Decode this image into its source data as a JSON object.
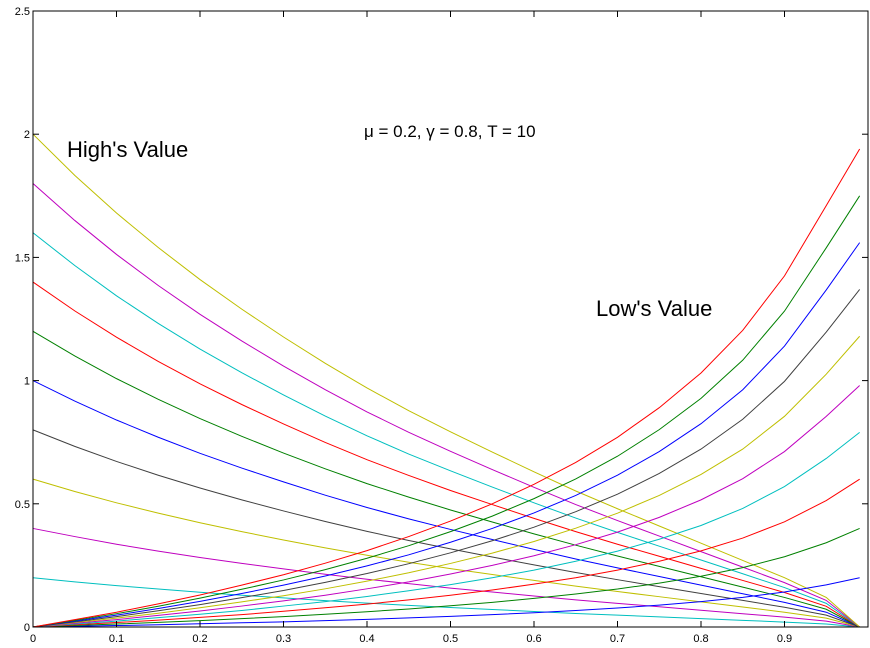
{
  "chart_data": {
    "type": "line",
    "title": "",
    "xlabel": "",
    "ylabel": "",
    "xlim": [
      0,
      1
    ],
    "ylim": [
      0,
      2.5
    ],
    "x_ticks": [
      0,
      0.1,
      0.2,
      0.3,
      0.4,
      0.5,
      0.6,
      0.7,
      0.8,
      0.9
    ],
    "x_tick_labels": [
      "0",
      "0.1",
      "0.2",
      "0.3",
      "0.4",
      "0.5",
      "0.6",
      "0.7",
      "0.8",
      "0.9"
    ],
    "y_ticks": [
      0,
      0.5,
      1,
      1.5,
      2,
      2.5
    ],
    "y_tick_labels": [
      "0",
      "0.5",
      "1",
      "1.5",
      "2",
      "2.5"
    ],
    "grid": false,
    "annotations": {
      "high": "High's Value",
      "low": "Low's Value",
      "params": "μ = 0.2, γ = 0.8, T = 10"
    },
    "x": [
      0,
      0.05,
      0.1,
      0.15,
      0.2,
      0.25,
      0.3,
      0.35,
      0.4,
      0.45,
      0.5,
      0.55,
      0.6,
      0.65,
      0.7,
      0.75,
      0.8,
      0.85,
      0.9,
      0.95,
      0.99
    ],
    "series": [
      {
        "group": "high",
        "color": "#00bfbf",
        "values": [
          0.2,
          0.183,
          0.168,
          0.154,
          0.141,
          0.129,
          0.118,
          0.107,
          0.097,
          0.088,
          0.079,
          0.071,
          0.063,
          0.055,
          0.048,
          0.041,
          0.034,
          0.027,
          0.02,
          0.012,
          0.0
        ]
      },
      {
        "group": "high",
        "color": "#bf00bf",
        "values": [
          0.4,
          0.367,
          0.336,
          0.308,
          0.282,
          0.258,
          0.236,
          0.214,
          0.194,
          0.176,
          0.158,
          0.142,
          0.126,
          0.11,
          0.096,
          0.082,
          0.068,
          0.054,
          0.04,
          0.024,
          0.0
        ]
      },
      {
        "group": "high",
        "color": "#bfbf00",
        "values": [
          0.6,
          0.55,
          0.504,
          0.462,
          0.423,
          0.387,
          0.353,
          0.321,
          0.291,
          0.263,
          0.237,
          0.213,
          0.189,
          0.166,
          0.144,
          0.123,
          0.102,
          0.081,
          0.06,
          0.036,
          0.0
        ]
      },
      {
        "group": "high",
        "color": "#404040",
        "values": [
          0.8,
          0.733,
          0.672,
          0.616,
          0.564,
          0.516,
          0.471,
          0.428,
          0.388,
          0.351,
          0.317,
          0.284,
          0.252,
          0.221,
          0.192,
          0.164,
          0.136,
          0.108,
          0.08,
          0.048,
          0.0
        ]
      },
      {
        "group": "high",
        "color": "#0000ff",
        "values": [
          1.0,
          0.917,
          0.84,
          0.77,
          0.705,
          0.645,
          0.589,
          0.535,
          0.485,
          0.439,
          0.396,
          0.355,
          0.315,
          0.276,
          0.24,
          0.205,
          0.17,
          0.135,
          0.1,
          0.06,
          0.0
        ]
      },
      {
        "group": "high",
        "color": "#008000",
        "values": [
          1.2,
          1.1,
          1.008,
          0.924,
          0.846,
          0.774,
          0.706,
          0.642,
          0.582,
          0.527,
          0.475,
          0.426,
          0.378,
          0.332,
          0.288,
          0.246,
          0.204,
          0.162,
          0.12,
          0.072,
          0.0
        ]
      },
      {
        "group": "high",
        "color": "#ff0000",
        "values": [
          1.4,
          1.283,
          1.176,
          1.078,
          0.987,
          0.903,
          0.824,
          0.749,
          0.679,
          0.615,
          0.554,
          0.497,
          0.441,
          0.387,
          0.336,
          0.287,
          0.238,
          0.189,
          0.14,
          0.084,
          0.0
        ]
      },
      {
        "group": "high",
        "color": "#00bfbf",
        "values": [
          1.6,
          1.467,
          1.344,
          1.232,
          1.128,
          1.032,
          0.942,
          0.856,
          0.776,
          0.702,
          0.634,
          0.568,
          0.504,
          0.442,
          0.384,
          0.328,
          0.272,
          0.216,
          0.16,
          0.096,
          0.0
        ]
      },
      {
        "group": "high",
        "color": "#bf00bf",
        "values": [
          1.8,
          1.65,
          1.512,
          1.386,
          1.269,
          1.161,
          1.059,
          0.963,
          0.873,
          0.79,
          0.713,
          0.639,
          0.567,
          0.497,
          0.432,
          0.369,
          0.306,
          0.243,
          0.18,
          0.108,
          0.0
        ]
      },
      {
        "group": "high",
        "color": "#bfbf00",
        "values": [
          2.0,
          1.833,
          1.68,
          1.54,
          1.41,
          1.29,
          1.177,
          1.07,
          0.97,
          0.878,
          0.792,
          0.71,
          0.63,
          0.552,
          0.48,
          0.41,
          0.34,
          0.27,
          0.2,
          0.12,
          0.0
        ]
      },
      {
        "group": "low",
        "color": "#0000ff",
        "values": [
          0.0,
          0.003,
          0.006,
          0.009,
          0.013,
          0.017,
          0.021,
          0.026,
          0.031,
          0.037,
          0.043,
          0.05,
          0.058,
          0.067,
          0.077,
          0.089,
          0.103,
          0.12,
          0.142,
          0.171,
          0.2
        ]
      },
      {
        "group": "low",
        "color": "#008000",
        "values": [
          0.0,
          0.006,
          0.012,
          0.019,
          0.026,
          0.034,
          0.042,
          0.052,
          0.062,
          0.073,
          0.086,
          0.1,
          0.116,
          0.134,
          0.154,
          0.178,
          0.206,
          0.241,
          0.285,
          0.342,
          0.4
        ]
      },
      {
        "group": "low",
        "color": "#ff0000",
        "values": [
          0.0,
          0.009,
          0.018,
          0.028,
          0.039,
          0.05,
          0.064,
          0.078,
          0.093,
          0.11,
          0.129,
          0.15,
          0.174,
          0.2,
          0.231,
          0.267,
          0.309,
          0.361,
          0.427,
          0.513,
          0.6
        ]
      },
      {
        "group": "low",
        "color": "#00bfbf",
        "values": [
          0.0,
          0.012,
          0.024,
          0.038,
          0.052,
          0.067,
          0.085,
          0.103,
          0.124,
          0.147,
          0.172,
          0.2,
          0.231,
          0.267,
          0.308,
          0.356,
          0.412,
          0.481,
          0.57,
          0.684,
          0.79
        ]
      },
      {
        "group": "low",
        "color": "#bf00bf",
        "values": [
          0.0,
          0.015,
          0.03,
          0.047,
          0.065,
          0.085,
          0.106,
          0.129,
          0.155,
          0.183,
          0.215,
          0.25,
          0.289,
          0.334,
          0.385,
          0.445,
          0.516,
          0.602,
          0.712,
          0.855,
          0.98
        ]
      },
      {
        "group": "low",
        "color": "#bfbf00",
        "values": [
          0.0,
          0.018,
          0.036,
          0.056,
          0.078,
          0.102,
          0.127,
          0.155,
          0.186,
          0.22,
          0.258,
          0.3,
          0.347,
          0.401,
          0.462,
          0.534,
          0.619,
          0.722,
          0.855,
          1.026,
          1.18
        ]
      },
      {
        "group": "low",
        "color": "#404040",
        "values": [
          0.0,
          0.021,
          0.042,
          0.066,
          0.091,
          0.119,
          0.148,
          0.181,
          0.217,
          0.257,
          0.301,
          0.35,
          0.405,
          0.468,
          0.539,
          0.623,
          0.722,
          0.843,
          0.997,
          1.197,
          1.37
        ]
      },
      {
        "group": "low",
        "color": "#0000ff",
        "values": [
          0.0,
          0.024,
          0.048,
          0.075,
          0.104,
          0.136,
          0.17,
          0.207,
          0.248,
          0.293,
          0.344,
          0.4,
          0.463,
          0.534,
          0.616,
          0.712,
          0.825,
          0.963,
          1.14,
          1.368,
          1.56
        ]
      },
      {
        "group": "low",
        "color": "#008000",
        "values": [
          0.0,
          0.027,
          0.054,
          0.084,
          0.117,
          0.153,
          0.191,
          0.233,
          0.279,
          0.33,
          0.387,
          0.45,
          0.521,
          0.601,
          0.693,
          0.801,
          0.928,
          1.083,
          1.282,
          1.539,
          1.75
        ]
      },
      {
        "group": "low",
        "color": "#ff0000",
        "values": [
          0.0,
          0.03,
          0.06,
          0.094,
          0.13,
          0.17,
          0.212,
          0.259,
          0.31,
          0.367,
          0.43,
          0.5,
          0.579,
          0.668,
          0.77,
          0.89,
          1.031,
          1.204,
          1.425,
          1.71,
          1.94
        ]
      }
    ]
  }
}
